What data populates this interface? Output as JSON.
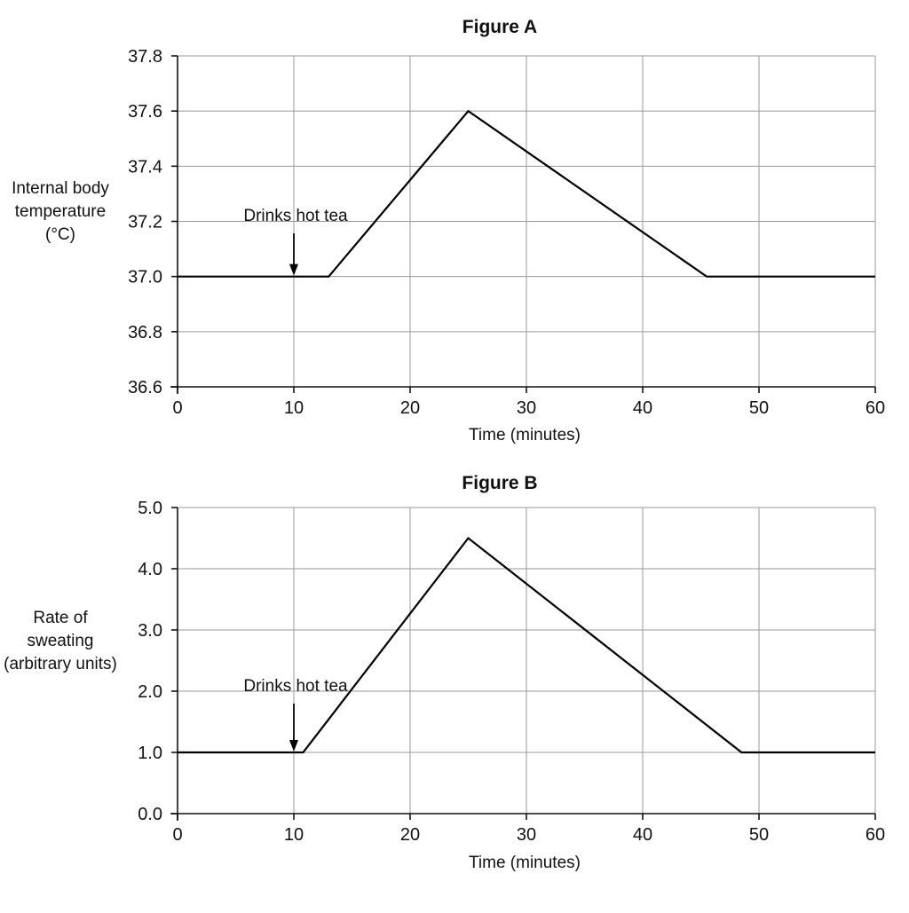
{
  "chart_data": [
    {
      "type": "line",
      "title": "Figure A",
      "xlabel": "Time (minutes)",
      "ylabel": [
        "Internal body",
        "temperature",
        "(°C)"
      ],
      "xlim": [
        0,
        60
      ],
      "ylim": [
        36.6,
        37.8
      ],
      "x_ticks": [
        0,
        10,
        20,
        30,
        40,
        50,
        60
      ],
      "x_tick_labels": [
        "0",
        "10",
        "20",
        "30",
        "40",
        "50",
        "60"
      ],
      "y_ticks": [
        36.6,
        36.8,
        37.0,
        37.2,
        37.4,
        37.6,
        37.8
      ],
      "y_tick_labels": [
        "36.6",
        "36.8",
        "37.0",
        "37.2",
        "37.4",
        "37.6",
        "37.8"
      ],
      "grid": true,
      "series": [
        {
          "x": [
            0,
            13,
            25,
            45.5,
            60
          ],
          "y": [
            37.0,
            37.0,
            37.6,
            37.0,
            37.0
          ]
        }
      ],
      "annotation": {
        "text": "Drinks hot tea",
        "x": 10,
        "y": 37.0
      }
    },
    {
      "type": "line",
      "title": "Figure B",
      "xlabel": "Time (minutes)",
      "ylabel": [
        "Rate of",
        "sweating",
        "(arbitrary units)"
      ],
      "xlim": [
        0,
        60
      ],
      "ylim": [
        0.0,
        5.0
      ],
      "x_ticks": [
        0,
        10,
        20,
        30,
        40,
        50,
        60
      ],
      "x_tick_labels": [
        "0",
        "10",
        "20",
        "30",
        "40",
        "50",
        "60"
      ],
      "y_ticks": [
        0.0,
        1.0,
        2.0,
        3.0,
        4.0,
        5.0
      ],
      "y_tick_labels": [
        "0.0",
        "1.0",
        "2.0",
        "3.0",
        "4.0",
        "5.0"
      ],
      "grid": true,
      "series": [
        {
          "x": [
            0,
            10.8,
            25,
            48.5,
            60
          ],
          "y": [
            1.0,
            1.0,
            4.5,
            1.0,
            1.0
          ]
        }
      ],
      "annotation": {
        "text": "Drinks hot tea",
        "x": 10,
        "y": 1.0
      }
    }
  ]
}
